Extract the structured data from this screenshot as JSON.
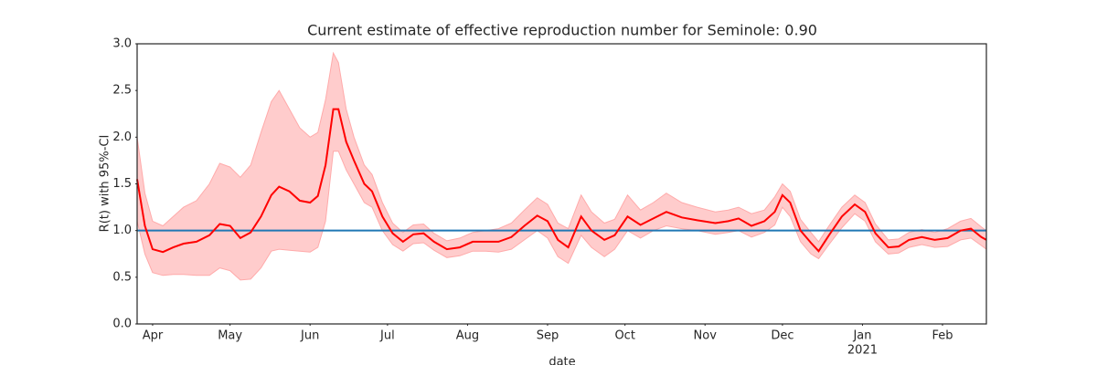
{
  "chart_data": {
    "type": "line",
    "title": "Current estimate of effective reproduction number for Seminole: 0.90",
    "ylabel": "R(t) with 95%-CI",
    "xlabel": "date",
    "xlim": [
      "2020-03-26",
      "2021-02-18"
    ],
    "xticks": [
      {
        "value": "2020-04-01",
        "label": "Apr"
      },
      {
        "value": "2020-05-01",
        "label": "May"
      },
      {
        "value": "2020-06-01",
        "label": "Jun"
      },
      {
        "value": "2020-07-01",
        "label": "Jul"
      },
      {
        "value": "2020-08-01",
        "label": "Aug"
      },
      {
        "value": "2020-09-01",
        "label": "Sep"
      },
      {
        "value": "2020-10-01",
        "label": "Oct"
      },
      {
        "value": "2020-11-01",
        "label": "Nov"
      },
      {
        "value": "2020-12-01",
        "label": "Dec"
      },
      {
        "value": "2021-01-01",
        "label": "Jan",
        "sublabel": "2021"
      },
      {
        "value": "2021-02-01",
        "label": "Feb"
      }
    ],
    "ylim": [
      0,
      3
    ],
    "yticks": [
      {
        "value": 0,
        "label": "0.0"
      },
      {
        "value": 0.5,
        "label": "0.5"
      },
      {
        "value": 1,
        "label": "1.0"
      },
      {
        "value": 1.5,
        "label": "1.5"
      },
      {
        "value": 2,
        "label": "2.0"
      },
      {
        "value": 2.5,
        "label": "2.5"
      },
      {
        "value": 3,
        "label": "3.0"
      }
    ],
    "hline": {
      "value": 1,
      "color": "#1f77b4"
    },
    "x": [
      "2020-03-26",
      "2020-03-29",
      "2020-04-01",
      "2020-04-05",
      "2020-04-09",
      "2020-04-13",
      "2020-04-18",
      "2020-04-23",
      "2020-04-27",
      "2020-05-01",
      "2020-05-05",
      "2020-05-09",
      "2020-05-13",
      "2020-05-17",
      "2020-05-20",
      "2020-05-24",
      "2020-05-28",
      "2020-06-01",
      "2020-06-04",
      "2020-06-07",
      "2020-06-10",
      "2020-06-12",
      "2020-06-15",
      "2020-06-18",
      "2020-06-22",
      "2020-06-25",
      "2020-06-29",
      "2020-07-03",
      "2020-07-07",
      "2020-07-11",
      "2020-07-15",
      "2020-07-19",
      "2020-07-24",
      "2020-07-29",
      "2020-08-03",
      "2020-08-08",
      "2020-08-13",
      "2020-08-18",
      "2020-08-23",
      "2020-08-28",
      "2020-09-01",
      "2020-09-05",
      "2020-09-09",
      "2020-09-14",
      "2020-09-18",
      "2020-09-23",
      "2020-09-27",
      "2020-10-02",
      "2020-10-07",
      "2020-10-12",
      "2020-10-17",
      "2020-10-23",
      "2020-10-29",
      "2020-11-05",
      "2020-11-10",
      "2020-11-14",
      "2020-11-19",
      "2020-11-24",
      "2020-11-28",
      "2020-12-01",
      "2020-12-04",
      "2020-12-08",
      "2020-12-12",
      "2020-12-15",
      "2020-12-19",
      "2020-12-24",
      "2020-12-29",
      "2021-01-02",
      "2021-01-06",
      "2021-01-11",
      "2021-01-15",
      "2021-01-19",
      "2021-01-24",
      "2021-01-29",
      "2021-02-03",
      "2021-02-08",
      "2021-02-12",
      "2021-02-16",
      "2021-02-18"
    ],
    "series": [
      {
        "color": "#ff0000",
        "values": [
          1.55,
          1.05,
          0.8,
          0.77,
          0.82,
          0.86,
          0.88,
          0.95,
          1.07,
          1.05,
          0.92,
          0.98,
          1.15,
          1.38,
          1.47,
          1.42,
          1.32,
          1.3,
          1.37,
          1.7,
          2.3,
          2.3,
          1.95,
          1.75,
          1.5,
          1.42,
          1.15,
          0.97,
          0.88,
          0.96,
          0.97,
          0.88,
          0.8,
          0.82,
          0.88,
          0.88,
          0.88,
          0.93,
          1.05,
          1.16,
          1.1,
          0.9,
          0.82,
          1.15,
          1.0,
          0.9,
          0.95,
          1.15,
          1.06,
          1.13,
          1.2,
          1.14,
          1.11,
          1.08,
          1.1,
          1.13,
          1.05,
          1.1,
          1.2,
          1.38,
          1.3,
          1.0,
          0.87,
          0.78,
          0.95,
          1.15,
          1.28,
          1.2,
          0.97,
          0.82,
          0.83,
          0.9,
          0.93,
          0.9,
          0.92,
          1.0,
          1.02,
          0.93,
          0.9
        ]
      }
    ],
    "band": {
      "color": "#ffcccc",
      "lower": [
        1.1,
        0.75,
        0.55,
        0.52,
        0.53,
        0.53,
        0.52,
        0.52,
        0.6,
        0.57,
        0.47,
        0.48,
        0.6,
        0.78,
        0.8,
        0.79,
        0.78,
        0.77,
        0.82,
        1.1,
        1.85,
        1.85,
        1.65,
        1.5,
        1.3,
        1.25,
        1.0,
        0.85,
        0.78,
        0.86,
        0.87,
        0.79,
        0.71,
        0.73,
        0.78,
        0.78,
        0.77,
        0.8,
        0.9,
        1.0,
        0.92,
        0.72,
        0.65,
        0.95,
        0.82,
        0.72,
        0.8,
        1.0,
        0.92,
        1.0,
        1.05,
        1.02,
        1.0,
        0.96,
        0.98,
        1.0,
        0.93,
        0.98,
        1.06,
        1.25,
        1.15,
        0.88,
        0.75,
        0.7,
        0.85,
        1.03,
        1.18,
        1.1,
        0.88,
        0.75,
        0.76,
        0.82,
        0.85,
        0.82,
        0.83,
        0.9,
        0.92,
        0.84,
        0.8
      ],
      "upper": [
        2.0,
        1.4,
        1.1,
        1.05,
        1.15,
        1.25,
        1.32,
        1.5,
        1.72,
        1.68,
        1.57,
        1.7,
        2.05,
        2.38,
        2.5,
        2.3,
        2.1,
        2.0,
        2.05,
        2.4,
        2.9,
        2.8,
        2.3,
        2.0,
        1.7,
        1.6,
        1.3,
        1.08,
        0.98,
        1.06,
        1.07,
        0.97,
        0.89,
        0.92,
        0.98,
        1.0,
        1.02,
        1.08,
        1.22,
        1.35,
        1.28,
        1.08,
        1.02,
        1.38,
        1.2,
        1.08,
        1.12,
        1.38,
        1.22,
        1.3,
        1.4,
        1.3,
        1.25,
        1.2,
        1.22,
        1.25,
        1.18,
        1.22,
        1.36,
        1.5,
        1.42,
        1.12,
        0.98,
        0.88,
        1.05,
        1.25,
        1.38,
        1.3,
        1.07,
        0.9,
        0.91,
        0.98,
        1.01,
        0.98,
        1.02,
        1.1,
        1.13,
        1.04,
        1.0
      ]
    }
  }
}
